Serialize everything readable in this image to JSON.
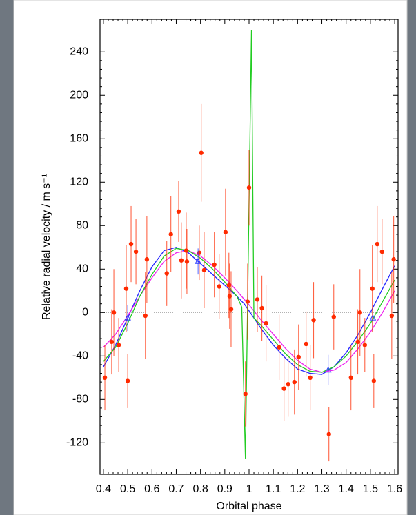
{
  "chart_data": {
    "type": "scatter",
    "xlabel": "Orbital phase",
    "ylabel": "Relative radial velocity / m s⁻¹",
    "xlim": [
      0.386,
      1.614
    ],
    "ylim": [
      -149,
      270
    ],
    "xticks": [
      0.4,
      0.5,
      0.6,
      0.7,
      0.8,
      0.9,
      1,
      1.1,
      1.2,
      1.3,
      1.4,
      1.5,
      1.6
    ],
    "yticks": [
      -120,
      -80,
      -40,
      0,
      40,
      80,
      120,
      160,
      200,
      240
    ],
    "hline": 0,
    "points": {
      "color": "#ff2a00",
      "x": [
        0.406,
        0.434,
        0.443,
        0.463,
        0.494,
        0.5,
        0.514,
        0.534,
        0.573,
        0.579,
        0.661,
        0.678,
        0.71,
        0.721,
        0.741,
        0.744,
        0.795,
        0.803,
        0.815,
        0.857,
        0.877,
        0.903,
        0.917,
        0.92,
        0.926,
        0.985,
        0.994,
        1.0,
        1.034,
        1.053,
        1.07,
        1.124,
        1.144,
        1.161,
        1.187,
        1.204,
        1.235,
        1.252,
        1.266,
        1.329,
        1.349,
        1.42,
        1.448,
        1.457,
        1.477,
        1.508,
        1.514,
        1.528,
        1.548,
        1.588,
        1.596
      ],
      "values": [
        -60,
        -27,
        0,
        -30,
        22,
        -63,
        63,
        56,
        -3,
        49,
        36,
        72,
        93,
        48,
        57,
        47,
        55,
        147,
        39,
        44,
        24,
        74,
        25,
        15,
        3,
        -75,
        10,
        115,
        12,
        4,
        -10,
        -32,
        -70,
        -66,
        -64,
        -41,
        -29,
        -60,
        -7,
        -112,
        -4,
        -60,
        -27,
        0,
        -30,
        22,
        -63,
        63,
        56,
        -3,
        49
      ],
      "errors": [
        30,
        30,
        40,
        25,
        40,
        25,
        35,
        30,
        40,
        40,
        30,
        35,
        28,
        35,
        35,
        30,
        25,
        45,
        35,
        30,
        30,
        40,
        30,
        30,
        35,
        30,
        35,
        35,
        30,
        30,
        35,
        30,
        30,
        30,
        30,
        30,
        30,
        30,
        35,
        25,
        30,
        30,
        30,
        40,
        25,
        40,
        25,
        35,
        30,
        40,
        40
      ]
    },
    "binned": {
      "color": "#2a3cff",
      "x": [
        0.5,
        0.79,
        1.326,
        1.51
      ],
      "values": [
        -5,
        47,
        -53,
        -5
      ],
      "errors": [
        12,
        12,
        14,
        12
      ]
    },
    "curves": [
      {
        "color": "#2222ff",
        "x": [
          0.4,
          0.45,
          0.5,
          0.55,
          0.6,
          0.65,
          0.7,
          0.75,
          0.8,
          0.85,
          0.9,
          0.95,
          0.98,
          1.02,
          1.05,
          1.1,
          1.15,
          1.2,
          1.25,
          1.3,
          1.35,
          1.4,
          1.45,
          1.5,
          1.55,
          1.6
        ],
        "values": [
          -50,
          -30,
          -5,
          20,
          42,
          57,
          60,
          55,
          45,
          35,
          25,
          15,
          8,
          -5,
          -15,
          -30,
          -42,
          -52,
          -56,
          -57,
          -50,
          -37,
          -20,
          0,
          22,
          43
        ]
      },
      {
        "color": "#ee22ee",
        "x": [
          0.4,
          0.45,
          0.5,
          0.55,
          0.6,
          0.65,
          0.7,
          0.75,
          0.8,
          0.85,
          0.9,
          0.95,
          1.0,
          1.05,
          1.1,
          1.15,
          1.2,
          1.25,
          1.3,
          1.35,
          1.4,
          1.45,
          1.5,
          1.55,
          1.6
        ],
        "values": [
          -32,
          -20,
          -3,
          15,
          32,
          47,
          55,
          57,
          52,
          43,
          32,
          20,
          7,
          -7,
          -20,
          -33,
          -44,
          -52,
          -55,
          -53,
          -46,
          -33,
          -18,
          0,
          20
        ]
      },
      {
        "color": "#22cc22",
        "x": [
          0.4,
          0.45,
          0.5,
          0.55,
          0.6,
          0.65,
          0.7,
          0.75,
          0.8,
          0.85,
          0.9,
          0.95,
          0.97,
          0.985,
          1.01,
          1.02,
          1.05,
          1.1,
          1.15,
          1.2,
          1.25,
          1.3,
          1.35,
          1.4,
          1.45,
          1.5,
          1.55,
          1.6
        ],
        "values": [
          -45,
          -32,
          -10,
          15,
          35,
          52,
          59,
          57,
          50,
          40,
          28,
          15,
          5,
          -135,
          260,
          -5,
          -12,
          -25,
          -38,
          -48,
          -54,
          -55,
          -50,
          -40,
          -26,
          -10,
          10,
          30
        ]
      }
    ]
  }
}
